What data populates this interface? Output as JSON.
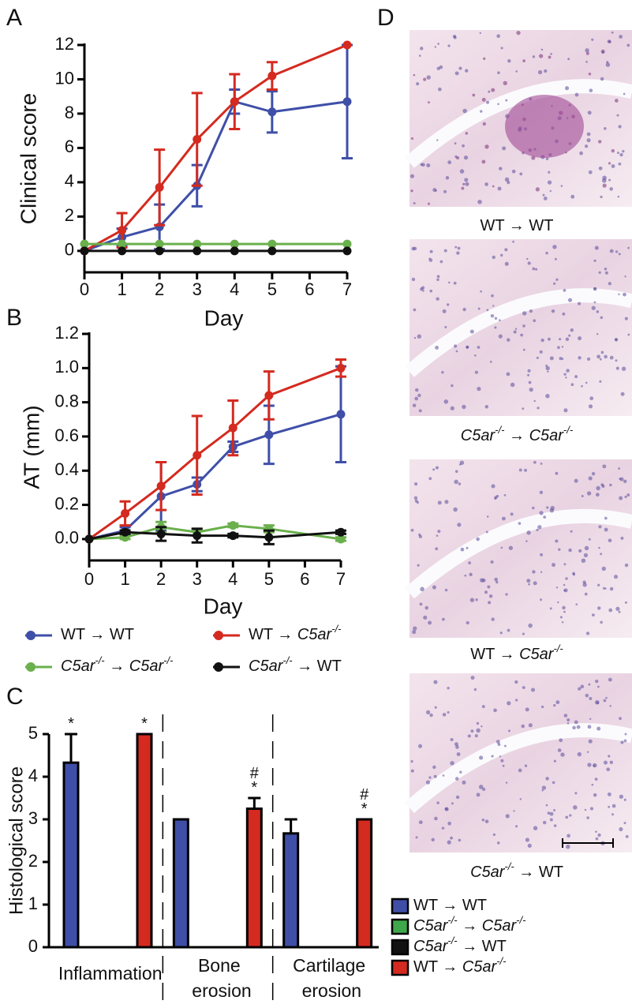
{
  "panels": [
    "A",
    "B",
    "C",
    "D"
  ],
  "chart_data": [
    {
      "type": "line",
      "ylabel": "Clinical score",
      "xlabel": "Day",
      "x": [
        0,
        1,
        2,
        3,
        4,
        5,
        7
      ],
      "xlim": [
        0,
        7
      ],
      "xticks": [
        0,
        1,
        2,
        3,
        4,
        5,
        6,
        7
      ],
      "ylim": [
        -1.25,
        12
      ],
      "yticks": [
        0,
        2,
        4,
        6,
        8,
        10,
        12
      ],
      "series": [
        {
          "name": "WT → WT",
          "color": "#3f4fa8",
          "values": [
            0,
            0.8,
            1.4,
            3.8,
            8.7,
            8.1,
            8.7
          ],
          "errors": [
            0,
            0.5,
            1.3,
            1.2,
            0.7,
            1.2,
            3.3
          ]
        },
        {
          "name": "WT → C5ar-/-",
          "color": "#d42a1f",
          "values": [
            0,
            1.2,
            3.7,
            6.5,
            8.7,
            10.2,
            12
          ],
          "errors": [
            0,
            1,
            2.2,
            2.7,
            1.6,
            0.8,
            0
          ]
        },
        {
          "name": "C5ar-/- → C5ar-/-",
          "color": "#6ab04c",
          "values": [
            0.4,
            0.4,
            0.4,
            0.4,
            0.4,
            0.4,
            0.4
          ],
          "errors": [
            0,
            0,
            0,
            0,
            0,
            0,
            0
          ]
        },
        {
          "name": "C5ar-/- → WT",
          "color": "#111111",
          "values": [
            0,
            0,
            0,
            0,
            0,
            0,
            0
          ],
          "errors": [
            0,
            0,
            0,
            0,
            0,
            0,
            0
          ]
        }
      ]
    },
    {
      "type": "line",
      "ylabel": "AT (mm)",
      "xlabel": "Day",
      "x": [
        0,
        1,
        2,
        3,
        4,
        5,
        7
      ],
      "xlim": [
        0,
        7
      ],
      "xticks": [
        0,
        1,
        2,
        3,
        4,
        5,
        6,
        7
      ],
      "ylim": [
        -0.125,
        1.2
      ],
      "yticks": [
        {
          "value": 0,
          "label": "0.0"
        },
        0.2,
        0.4,
        0.6,
        0.8,
        {
          "value": 1,
          "label": "1.0"
        },
        1.2
      ],
      "series": [
        {
          "name": "WT → WT",
          "color": "#3f4fa8",
          "values": [
            0,
            0.05,
            0.25,
            0.32,
            0.54,
            0.61,
            0.73
          ],
          "errors": [
            0,
            0.02,
            0.2,
            0.04,
            0.03,
            0.17,
            0.28
          ]
        },
        {
          "name": "WT → C5ar-/-",
          "color": "#d42a1f",
          "values": [
            0,
            0.15,
            0.31,
            0.49,
            0.65,
            0.84,
            1.0
          ],
          "errors": [
            0,
            0.07,
            0.14,
            0.23,
            0.16,
            0.14,
            0.05
          ]
        },
        {
          "name": "C5ar-/- → C5ar-/-",
          "color": "#6ab04c",
          "values": [
            0,
            0.01,
            0.07,
            0.04,
            0.08,
            0.06,
            0
          ],
          "errors": [
            0,
            0.01,
            0.03,
            0.02,
            0.01,
            0.02,
            0.01
          ]
        },
        {
          "name": "C5ar-/- → WT",
          "color": "#111111",
          "values": [
            0,
            0.04,
            0.03,
            0.02,
            0.02,
            0.01,
            0.04
          ],
          "errors": [
            0,
            0.01,
            0.04,
            0.04,
            0.01,
            0.04,
            0.01
          ]
        }
      ]
    },
    {
      "type": "bar",
      "ylabel": "Histological score",
      "categories": [
        "Inflammation",
        "Bone erosion",
        "Cartilage erosion"
      ],
      "ylim": [
        0,
        5
      ],
      "yticks": [
        0,
        1,
        2,
        3,
        4,
        5
      ],
      "series": [
        {
          "name": "WT → WT",
          "color": "#3f4fa8",
          "values": [
            4.33,
            3,
            2.67
          ],
          "errors": [
            0.67,
            0,
            0.33
          ],
          "value_labels": [
            "*",
            null,
            null
          ]
        },
        {
          "name": "C5ar-/- → C5ar-/-",
          "color": "#3fa84a",
          "values": [
            0,
            0,
            0
          ],
          "errors": [
            0,
            0,
            0
          ],
          "value_labels": [
            null,
            null,
            null
          ]
        },
        {
          "name": "C5ar-/- → WT",
          "color": "#111111",
          "values": [
            0,
            0,
            0
          ],
          "errors": [
            0,
            0,
            0
          ],
          "value_labels": [
            null,
            null,
            null
          ]
        },
        {
          "name": "WT → C5ar-/-",
          "color": "#d42a1f",
          "values": [
            5,
            3.25,
            3
          ],
          "errors": [
            0,
            0.25,
            0
          ],
          "value_labels": [
            "*",
            "#*",
            "#*"
          ]
        }
      ]
    }
  ],
  "images": {
    "captions": [
      "WT → WT",
      "C5ar-/- → C5ar-/-",
      "WT → C5ar-/-",
      "C5ar-/- → WT"
    ]
  }
}
